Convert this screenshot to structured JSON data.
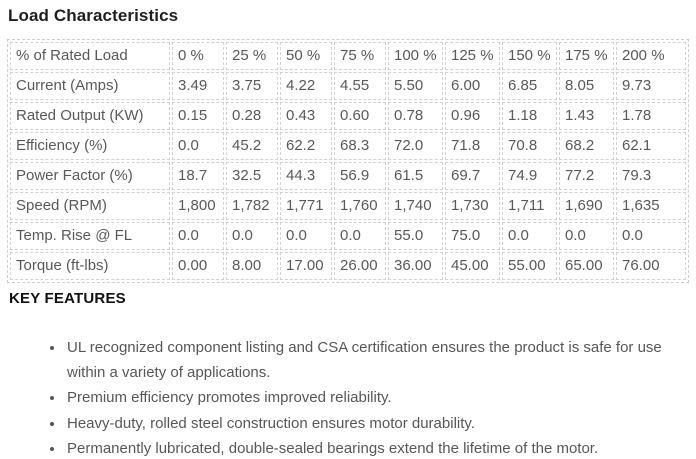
{
  "title": "Load Characteristics",
  "table": {
    "rows": [
      {
        "label": "% of Rated Load",
        "values": [
          "0 %",
          "25 %",
          "50 %",
          "75 %",
          "100 %",
          "125 %",
          "150 %",
          "175 %",
          "200 %"
        ]
      },
      {
        "label": "Current (Amps)",
        "values": [
          "3.49",
          "3.75",
          "4.22",
          "4.55",
          "5.50",
          "6.00",
          "6.85",
          "8.05",
          "9.73"
        ]
      },
      {
        "label": "Rated Output (KW)",
        "values": [
          "0.15",
          "0.28",
          "0.43",
          "0.60",
          "0.78",
          "0.96",
          "1.18",
          "1.43",
          "1.78"
        ]
      },
      {
        "label": "Efficiency (%)",
        "values": [
          "0.0",
          "45.2",
          "62.2",
          "68.3",
          "72.0",
          "71.8",
          "70.8",
          "68.2",
          "62.1"
        ]
      },
      {
        "label": "Power Factor (%)",
        "values": [
          "18.7",
          "32.5",
          "44.3",
          "56.9",
          "61.5",
          "69.7",
          "74.9",
          "77.2",
          "79.3"
        ]
      },
      {
        "label": "Speed (RPM)",
        "values": [
          "1,800",
          "1,782",
          "1,771",
          "1,760",
          "1,740",
          "1,730",
          "1,711",
          "1,690",
          "1,635"
        ]
      },
      {
        "label": "Temp. Rise @ FL",
        "values": [
          "0.0",
          "0.0",
          "0.0",
          "0.0",
          "55.0",
          "75.0",
          "0.0",
          "0.0",
          "0.0"
        ]
      },
      {
        "label": "Torque (ft-lbs)",
        "values": [
          "0.00",
          "8.00",
          "17.00",
          "26.00",
          "36.00",
          "45.00",
          "55.00",
          "65.00",
          "76.00"
        ]
      }
    ]
  },
  "features": {
    "heading": "KEY FEATURES",
    "items": [
      "UL recognized component listing and CSA certification ensures the product is safe for use within a variety of applications.",
      "Premium efficiency promotes improved reliability.",
      "Heavy-duty, rolled steel construction ensures motor durability.",
      "Permanently lubricated, double-sealed bearings extend the lifetime of the motor."
    ]
  },
  "colors": {
    "heading_text": "#1f1f1f",
    "body_text": "#595959",
    "table_border": "#d2d2d2"
  }
}
